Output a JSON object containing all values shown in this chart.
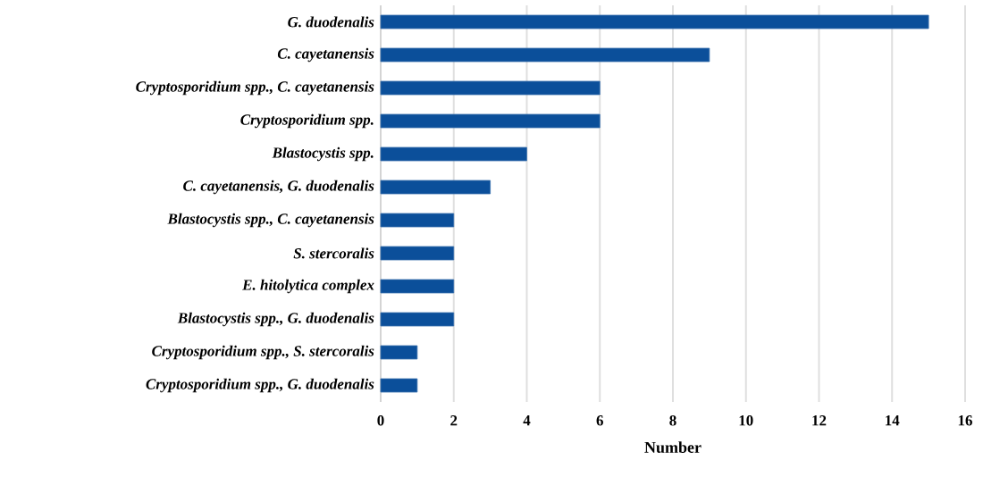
{
  "chart_data": {
    "type": "bar",
    "orientation": "horizontal",
    "xlabel": "Number",
    "categories": [
      "G. duodenalis",
      "C. cayetanensis",
      "Cryptosporidium spp., C. cayetanensis",
      "Cryptosporidium spp.",
      "Blastocystis spp.",
      "C. cayetanensis, G. duodenalis",
      "Blastocystis spp., C. cayetanensis",
      "S. stercoralis",
      "E. hitolytica complex",
      "Blastocystis spp., G. duodenalis",
      "Cryptosporidium spp., S. stercoralis",
      "Cryptosporidium spp., G. duodenalis"
    ],
    "values": [
      15,
      9,
      6,
      6,
      4,
      3,
      2,
      2,
      2,
      2,
      1,
      1
    ],
    "color": "#0b4f9a",
    "xlim": [
      0,
      16
    ],
    "xticks": [
      0,
      2,
      4,
      6,
      8,
      10,
      12,
      14,
      16
    ],
    "grid": "x"
  }
}
